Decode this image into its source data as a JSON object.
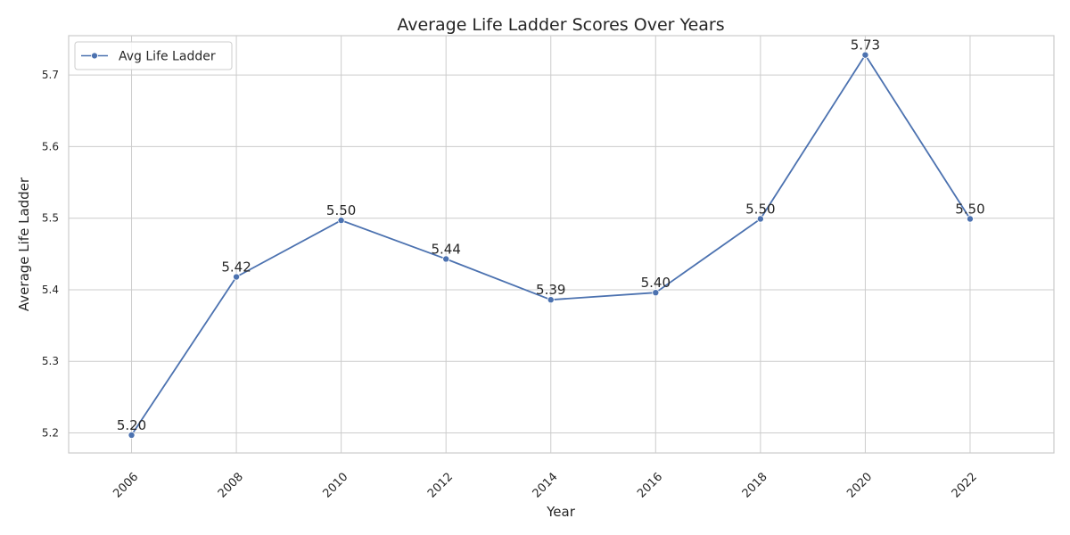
{
  "chart_data": {
    "type": "line",
    "title": "Average Life Ladder Scores Over Years",
    "xlabel": "Year",
    "ylabel": "Average Life Ladder",
    "x": [
      2006,
      2008,
      2010,
      2012,
      2014,
      2016,
      2018,
      2020,
      2022
    ],
    "x_tick_labels": [
      "2006",
      "2008",
      "2010",
      "2012",
      "2014",
      "2016",
      "2018",
      "2020",
      "2022"
    ],
    "xlim": [
      2004.8,
      2023.6
    ],
    "ylim": [
      5.172,
      5.755
    ],
    "y_ticks": [
      5.2,
      5.3,
      5.4,
      5.5,
      5.6,
      5.7
    ],
    "y_tick_labels": [
      "5.2",
      "5.3",
      "5.4",
      "5.5",
      "5.6",
      "5.7"
    ],
    "series": [
      {
        "name": "Avg Life Ladder",
        "values": [
          5.197,
          5.418,
          5.497,
          5.443,
          5.386,
          5.396,
          5.499,
          5.728,
          5.499
        ],
        "data_labels": [
          "5.20",
          "5.42",
          "5.50",
          "5.44",
          "5.39",
          "5.40",
          "5.50",
          "5.73",
          "5.50"
        ],
        "color": "#4c72b0",
        "marker": "circle"
      }
    ],
    "grid": true,
    "legend_position": "top-left"
  }
}
